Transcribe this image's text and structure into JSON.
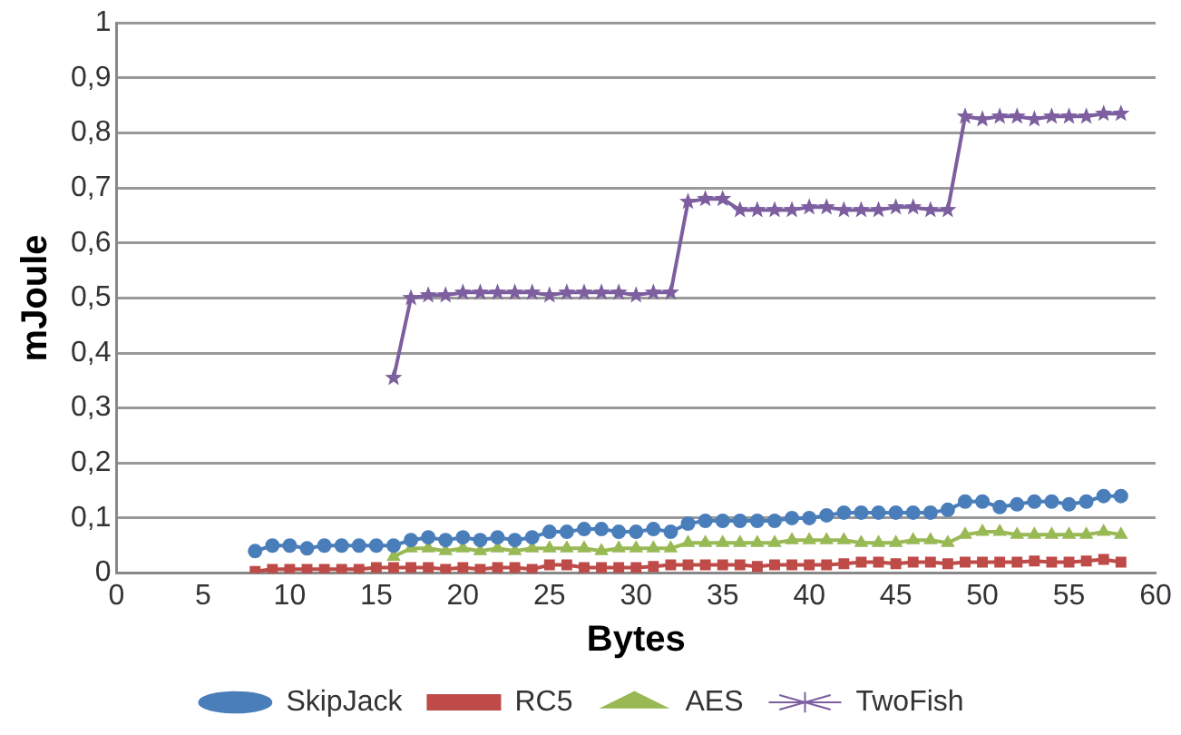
{
  "chart_data": {
    "type": "line",
    "xlabel": "Bytes",
    "ylabel": "mJoule",
    "xlim": [
      0,
      60
    ],
    "xticks": [
      0,
      5,
      10,
      15,
      20,
      25,
      30,
      35,
      40,
      45,
      50,
      55,
      60
    ],
    "ylim": [
      0,
      1
    ],
    "yticks": [
      {
        "value": 0,
        "label": "0"
      },
      {
        "value": 0.1,
        "label": "0,1"
      },
      {
        "value": 0.2,
        "label": "0,2"
      },
      {
        "value": 0.3,
        "label": "0,3"
      },
      {
        "value": 0.4,
        "label": "0,4"
      },
      {
        "value": 0.5,
        "label": "0,5"
      },
      {
        "value": 0.6,
        "label": "0,6"
      },
      {
        "value": 0.7,
        "label": "0,7"
      },
      {
        "value": 0.8,
        "label": "0,8"
      },
      {
        "value": 0.9,
        "label": "0,9"
      },
      {
        "value": 1,
        "label": "1"
      }
    ],
    "grid": "y",
    "legend": "bottom",
    "series": [
      {
        "name": "SkipJack",
        "color": "#4a7ebb",
        "marker": "circle",
        "x": [
          8,
          9,
          10,
          11,
          12,
          13,
          14,
          15,
          16,
          17,
          18,
          19,
          20,
          21,
          22,
          23,
          24,
          25,
          26,
          27,
          28,
          29,
          30,
          31,
          32,
          33,
          34,
          35,
          36,
          37,
          38,
          39,
          40,
          41,
          42,
          43,
          44,
          45,
          46,
          47,
          48,
          49,
          50,
          51,
          52,
          53,
          54,
          55,
          56,
          57,
          58
        ],
        "values": [
          0.04,
          0.05,
          0.05,
          0.045,
          0.05,
          0.05,
          0.05,
          0.05,
          0.05,
          0.06,
          0.065,
          0.06,
          0.065,
          0.06,
          0.065,
          0.06,
          0.065,
          0.075,
          0.075,
          0.08,
          0.08,
          0.075,
          0.075,
          0.08,
          0.075,
          0.09,
          0.095,
          0.095,
          0.095,
          0.095,
          0.095,
          0.1,
          0.1,
          0.105,
          0.11,
          0.11,
          0.11,
          0.11,
          0.11,
          0.11,
          0.115,
          0.13,
          0.13,
          0.12,
          0.125,
          0.13,
          0.13,
          0.125,
          0.13,
          0.14,
          0.14
        ]
      },
      {
        "name": "RC5",
        "color": "#be4b48",
        "marker": "square",
        "x": [
          8,
          9,
          10,
          11,
          12,
          13,
          14,
          15,
          16,
          17,
          18,
          19,
          20,
          21,
          22,
          23,
          24,
          25,
          26,
          27,
          28,
          29,
          30,
          31,
          32,
          33,
          34,
          35,
          36,
          37,
          38,
          39,
          40,
          41,
          42,
          43,
          44,
          45,
          46,
          47,
          48,
          49,
          50,
          51,
          52,
          53,
          54,
          55,
          56,
          57,
          58
        ],
        "values": [
          0.003,
          0.007,
          0.007,
          0.007,
          0.007,
          0.007,
          0.007,
          0.01,
          0.01,
          0.01,
          0.01,
          0.007,
          0.01,
          0.007,
          0.01,
          0.01,
          0.007,
          0.015,
          0.015,
          0.01,
          0.01,
          0.01,
          0.01,
          0.012,
          0.015,
          0.015,
          0.015,
          0.015,
          0.015,
          0.012,
          0.015,
          0.015,
          0.015,
          0.015,
          0.017,
          0.02,
          0.02,
          0.017,
          0.02,
          0.02,
          0.017,
          0.02,
          0.02,
          0.02,
          0.02,
          0.022,
          0.02,
          0.02,
          0.022,
          0.025,
          0.02
        ]
      },
      {
        "name": "AES",
        "color": "#98b954",
        "marker": "triangle",
        "x": [
          16,
          17,
          18,
          19,
          20,
          21,
          22,
          23,
          24,
          25,
          26,
          27,
          28,
          29,
          30,
          31,
          32,
          33,
          34,
          35,
          36,
          37,
          38,
          39,
          40,
          41,
          42,
          43,
          44,
          45,
          46,
          47,
          48,
          49,
          50,
          51,
          52,
          53,
          54,
          55,
          56,
          57,
          58
        ],
        "values": [
          0.03,
          0.045,
          0.045,
          0.04,
          0.045,
          0.04,
          0.045,
          0.04,
          0.045,
          0.045,
          0.045,
          0.045,
          0.04,
          0.045,
          0.045,
          0.045,
          0.045,
          0.055,
          0.055,
          0.055,
          0.055,
          0.055,
          0.055,
          0.06,
          0.06,
          0.06,
          0.06,
          0.055,
          0.055,
          0.055,
          0.06,
          0.06,
          0.055,
          0.07,
          0.075,
          0.075,
          0.07,
          0.07,
          0.07,
          0.07,
          0.07,
          0.075,
          0.07
        ]
      },
      {
        "name": "TwoFish",
        "color": "#7d5fa0",
        "marker": "star",
        "x": [
          16,
          17,
          18,
          19,
          20,
          21,
          22,
          23,
          24,
          25,
          26,
          27,
          28,
          29,
          30,
          31,
          32,
          33,
          34,
          35,
          36,
          37,
          38,
          39,
          40,
          41,
          42,
          43,
          44,
          45,
          46,
          47,
          48,
          49,
          50,
          51,
          52,
          53,
          54,
          55,
          56,
          57,
          58
        ],
        "values": [
          0.355,
          0.5,
          0.505,
          0.505,
          0.51,
          0.51,
          0.51,
          0.51,
          0.51,
          0.505,
          0.51,
          0.51,
          0.51,
          0.51,
          0.505,
          0.51,
          0.51,
          0.675,
          0.68,
          0.68,
          0.66,
          0.66,
          0.66,
          0.66,
          0.665,
          0.665,
          0.66,
          0.66,
          0.66,
          0.665,
          0.665,
          0.66,
          0.66,
          0.83,
          0.825,
          0.83,
          0.83,
          0.825,
          0.83,
          0.83,
          0.83,
          0.835,
          0.835
        ]
      }
    ]
  }
}
